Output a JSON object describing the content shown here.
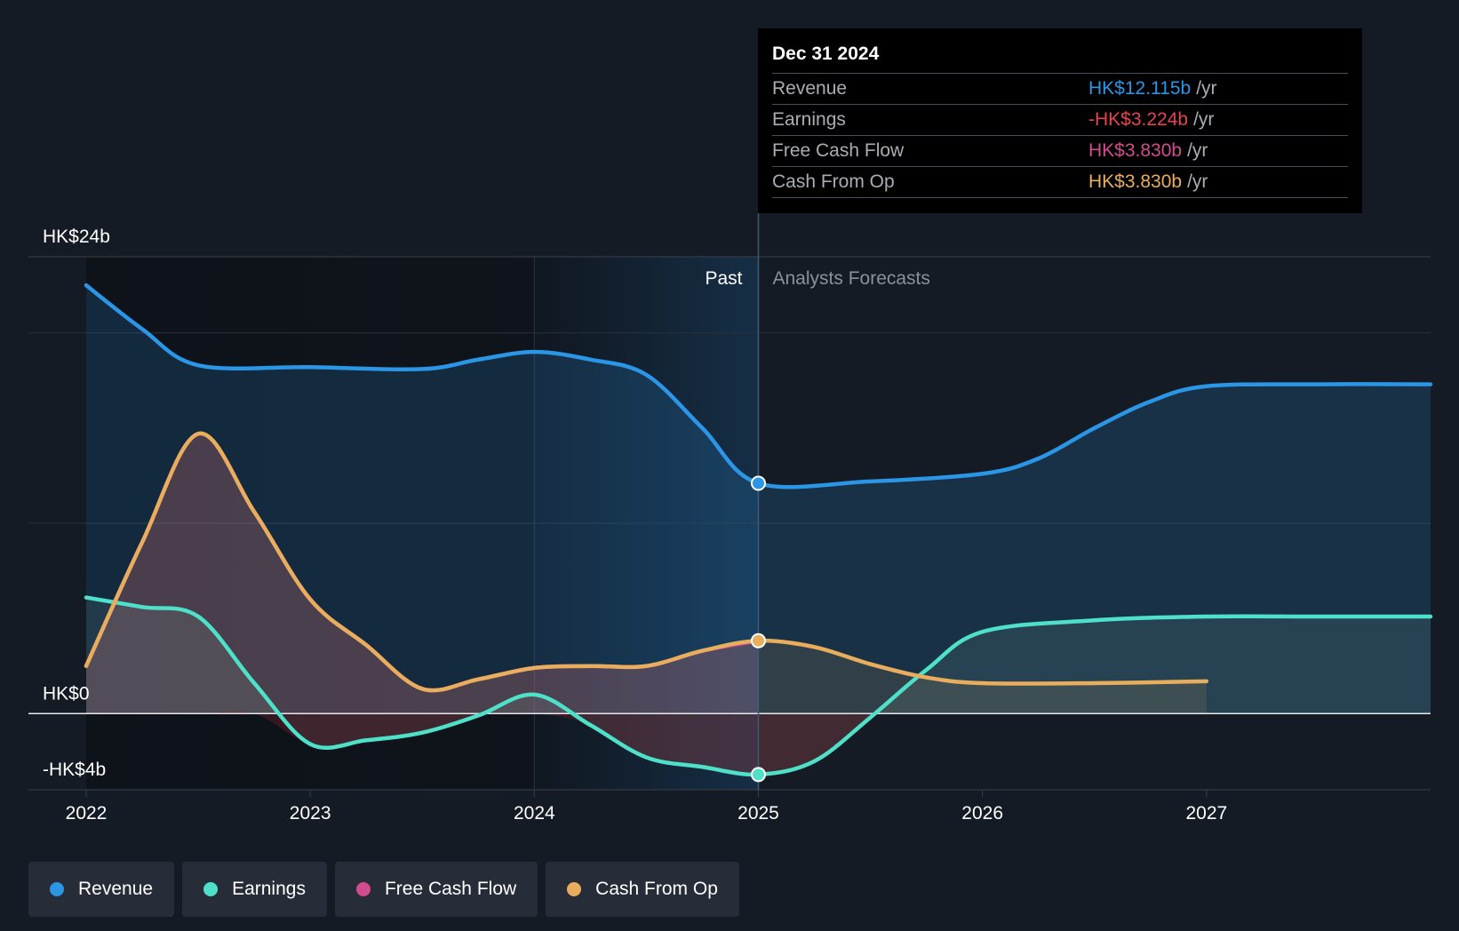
{
  "chart_data": {
    "type": "area",
    "y_unit": "HK$ billions",
    "ylim": [
      -4,
      24
    ],
    "y_axis_labels": [
      "HK$24b",
      "HK$0",
      "-HK$4b"
    ],
    "x_tick_labels": [
      "2022",
      "2023",
      "2024",
      "2025",
      "2026",
      "2027"
    ],
    "past_label": "Past",
    "forecast_label": "Analysts Forecasts",
    "past_end": 2025.0,
    "series": [
      {
        "name": "Revenue",
        "color": "#2b95e6",
        "x": [
          2022.0,
          2022.25,
          2022.5,
          2023.0,
          2023.5,
          2023.75,
          2024.0,
          2024.25,
          2024.5,
          2024.75,
          2025.0,
          2025.5,
          2026.0,
          2026.25,
          2026.5,
          2026.75,
          2027.0,
          2027.5,
          2028.0
        ],
        "y": [
          22.5,
          20.2,
          18.3,
          18.2,
          18.1,
          18.6,
          19.0,
          18.6,
          17.8,
          15.0,
          12.1,
          12.2,
          12.6,
          13.4,
          15.0,
          16.4,
          17.2,
          17.3,
          17.3
        ]
      },
      {
        "name": "Earnings",
        "color": "#4ee0c8",
        "x": [
          2022.0,
          2022.25,
          2022.5,
          2022.75,
          2023.0,
          2023.25,
          2023.5,
          2023.75,
          2024.0,
          2024.25,
          2024.5,
          2024.75,
          2025.0,
          2025.25,
          2025.5,
          2025.75,
          2026.0,
          2026.5,
          2027.0,
          2027.5,
          2028.0
        ],
        "y": [
          6.1,
          5.6,
          5.1,
          1.6,
          -1.6,
          -1.4,
          -1.0,
          -0.1,
          1.0,
          -0.6,
          -2.3,
          -2.8,
          -3.2,
          -2.5,
          -0.2,
          2.3,
          4.3,
          4.9,
          5.1,
          5.1,
          5.1
        ]
      },
      {
        "name": "Free Cash Flow",
        "color": "#d04c8e",
        "x": [
          2022.0,
          2022.25,
          2022.5,
          2022.75,
          2023.0,
          2023.25,
          2023.5,
          2023.75,
          2024.0,
          2024.25,
          2024.5,
          2024.75,
          2025.0
        ],
        "y": [
          2.5,
          9.0,
          14.7,
          10.6,
          6.0,
          3.6,
          1.3,
          1.8,
          2.4,
          2.5,
          2.5,
          3.3,
          3.83
        ]
      },
      {
        "name": "Cash From Op",
        "color": "#e8ad5d",
        "x": [
          2022.0,
          2022.25,
          2022.5,
          2022.75,
          2023.0,
          2023.25,
          2023.5,
          2023.75,
          2024.0,
          2024.25,
          2024.5,
          2024.75,
          2025.0,
          2025.25,
          2025.5,
          2025.75,
          2026.0,
          2026.5,
          2027.0
        ],
        "y": [
          2.5,
          9.0,
          14.7,
          10.6,
          6.0,
          3.6,
          1.3,
          1.8,
          2.4,
          2.5,
          2.5,
          3.3,
          3.83,
          3.5,
          2.6,
          1.9,
          1.6,
          1.6,
          1.7
        ]
      }
    ],
    "highlight_x": 2025.0
  },
  "tooltip": {
    "date": "Dec 31 2024",
    "unit": "/yr",
    "rows": [
      {
        "label": "Revenue",
        "value": "HK$12.115b",
        "color": "#2b95e6"
      },
      {
        "label": "Earnings",
        "value": "-HK$3.224b",
        "color": "#e8434c"
      },
      {
        "label": "Free Cash Flow",
        "value": "HK$3.830b",
        "color": "#d04c8e"
      },
      {
        "label": "Cash From Op",
        "value": "HK$3.830b",
        "color": "#e8ad5d"
      }
    ]
  },
  "legend": {
    "items": [
      {
        "label": "Revenue",
        "color": "#2b95e6"
      },
      {
        "label": "Earnings",
        "color": "#4ee0c8"
      },
      {
        "label": "Free Cash Flow",
        "color": "#d04c8e"
      },
      {
        "label": "Cash From Op",
        "color": "#e8ad5d"
      }
    ]
  }
}
